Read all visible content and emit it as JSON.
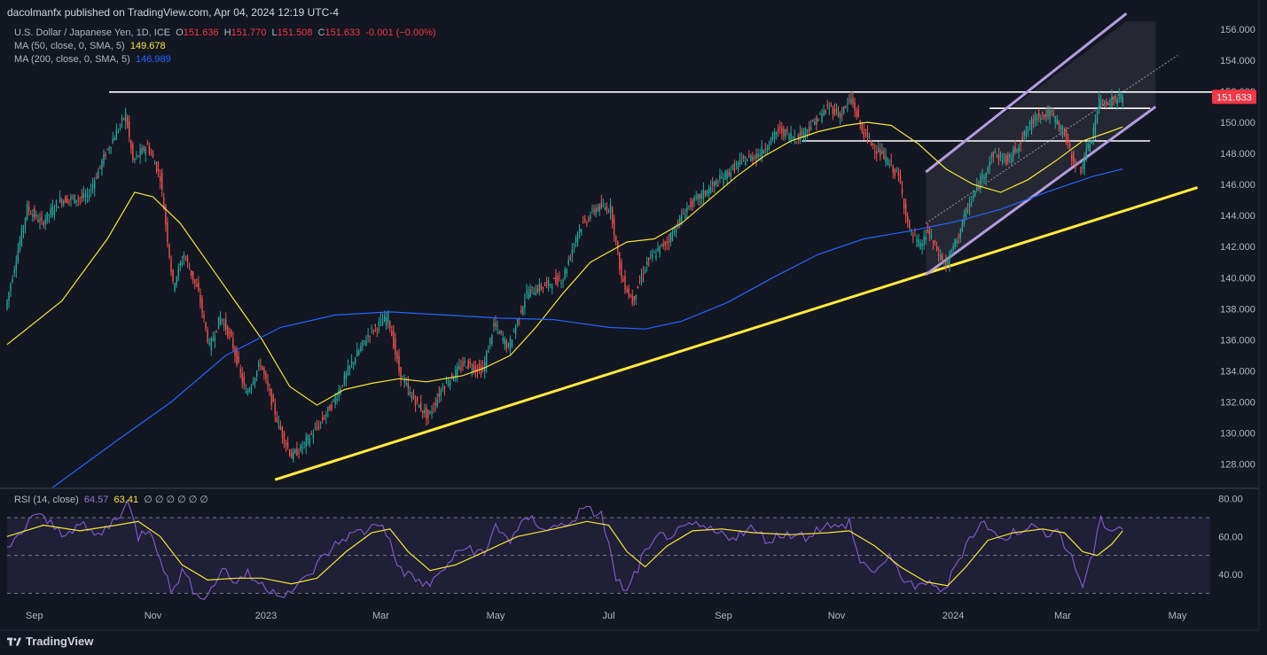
{
  "header": {
    "published": "dacolmanfx published on TradingView.com, Apr 04, 2024 12:19 UTC-4"
  },
  "legend": {
    "symbol": "U.S. Dollar / Japanese Yen, 1D, ICE",
    "o_label": "O",
    "o": "151.636",
    "h_label": "H",
    "h": "151.770",
    "l_label": "L",
    "l": "151.508",
    "c_label": "C",
    "c": "151.633",
    "change": "-0.001 (−0.00%)",
    "ma50_label": "MA (50, close, 0, SMA, 5)",
    "ma50": "149.678",
    "ma200_label": "MA (200, close, 0, SMA, 5)",
    "ma200": "146.989",
    "rsi_label": "RSI (14, close)",
    "rsi": "64.57",
    "rsi_ma": "63.41",
    "rsi_extra": "∅ ∅ ∅ ∅ ∅ ∅"
  },
  "price_badge": "151.633",
  "footer": {
    "brand": "TradingView"
  },
  "colors": {
    "up": "#26a69a",
    "down": "#ef5350",
    "ma50": "#f5e63c",
    "ma200": "#2962ff",
    "trend": "#ffeb3b",
    "channel": "#b39ddb",
    "rsi": "#7e57c2"
  },
  "chart_data": {
    "type": "candlestick",
    "title": "U.S. Dollar / Japanese Yen, 1D",
    "y_axis": {
      "min": 126.5,
      "max": 156.5,
      "ticks": [
        "156.000",
        "154.000",
        "152.000",
        "150.000",
        "148.000",
        "146.000",
        "144.000",
        "142.000",
        "140.000",
        "138.000",
        "136.000",
        "134.000",
        "132.000",
        "130.000",
        "128.000"
      ]
    },
    "x_axis": {
      "labels": [
        "Sep",
        "Nov",
        "2023",
        "Mar",
        "May",
        "Jul",
        "Sep",
        "Nov",
        "2024",
        "Mar",
        "May"
      ],
      "label_day_index": [
        15,
        80,
        142,
        205,
        268,
        330,
        393,
        455,
        519,
        579,
        642
      ]
    },
    "days_total": 660,
    "price_path": [
      {
        "d": 0,
        "p": 138.0
      },
      {
        "d": 12,
        "p": 144.5
      },
      {
        "d": 20,
        "p": 143.5
      },
      {
        "d": 30,
        "p": 145.0
      },
      {
        "d": 45,
        "p": 145.2
      },
      {
        "d": 55,
        "p": 148.0
      },
      {
        "d": 66,
        "p": 150.5
      },
      {
        "d": 70,
        "p": 147.5
      },
      {
        "d": 78,
        "p": 148.5
      },
      {
        "d": 85,
        "p": 146.5
      },
      {
        "d": 92,
        "p": 139.5
      },
      {
        "d": 98,
        "p": 141.5
      },
      {
        "d": 106,
        "p": 139.0
      },
      {
        "d": 112,
        "p": 135.5
      },
      {
        "d": 118,
        "p": 137.5
      },
      {
        "d": 124,
        "p": 136.0
      },
      {
        "d": 132,
        "p": 132.5
      },
      {
        "d": 140,
        "p": 134.5
      },
      {
        "d": 150,
        "p": 130.5
      },
      {
        "d": 157,
        "p": 128.5
      },
      {
        "d": 162,
        "p": 129.0
      },
      {
        "d": 172,
        "p": 130.5
      },
      {
        "d": 180,
        "p": 132.0
      },
      {
        "d": 190,
        "p": 134.5
      },
      {
        "d": 200,
        "p": 136.5
      },
      {
        "d": 210,
        "p": 137.5
      },
      {
        "d": 216,
        "p": 134.0
      },
      {
        "d": 222,
        "p": 132.5
      },
      {
        "d": 232,
        "p": 131.0
      },
      {
        "d": 240,
        "p": 133.0
      },
      {
        "d": 252,
        "p": 134.5
      },
      {
        "d": 262,
        "p": 134.0
      },
      {
        "d": 268,
        "p": 137.0
      },
      {
        "d": 276,
        "p": 135.5
      },
      {
        "d": 286,
        "p": 139.0
      },
      {
        "d": 296,
        "p": 139.5
      },
      {
        "d": 306,
        "p": 140.0
      },
      {
        "d": 314,
        "p": 143.0
      },
      {
        "d": 324,
        "p": 144.5
      },
      {
        "d": 332,
        "p": 144.5
      },
      {
        "d": 338,
        "p": 140.0
      },
      {
        "d": 344,
        "p": 138.5
      },
      {
        "d": 352,
        "p": 141.0
      },
      {
        "d": 364,
        "p": 142.5
      },
      {
        "d": 374,
        "p": 144.5
      },
      {
        "d": 384,
        "p": 145.5
      },
      {
        "d": 394,
        "p": 146.5
      },
      {
        "d": 404,
        "p": 147.5
      },
      {
        "d": 414,
        "p": 148.0
      },
      {
        "d": 424,
        "p": 149.5
      },
      {
        "d": 434,
        "p": 149.0
      },
      {
        "d": 444,
        "p": 150.0
      },
      {
        "d": 452,
        "p": 151.0
      },
      {
        "d": 458,
        "p": 150.5
      },
      {
        "d": 464,
        "p": 151.5
      },
      {
        "d": 470,
        "p": 149.5
      },
      {
        "d": 476,
        "p": 148.5
      },
      {
        "d": 484,
        "p": 147.5
      },
      {
        "d": 490,
        "p": 146.5
      },
      {
        "d": 496,
        "p": 143.0
      },
      {
        "d": 502,
        "p": 142.0
      },
      {
        "d": 506,
        "p": 143.0
      },
      {
        "d": 512,
        "p": 141.5
      },
      {
        "d": 516,
        "p": 140.8
      },
      {
        "d": 522,
        "p": 142.5
      },
      {
        "d": 528,
        "p": 144.5
      },
      {
        "d": 536,
        "p": 146.5
      },
      {
        "d": 542,
        "p": 148.0
      },
      {
        "d": 550,
        "p": 147.5
      },
      {
        "d": 558,
        "p": 149.0
      },
      {
        "d": 566,
        "p": 150.5
      },
      {
        "d": 574,
        "p": 150.5
      },
      {
        "d": 580,
        "p": 149.5
      },
      {
        "d": 586,
        "p": 147.5
      },
      {
        "d": 590,
        "p": 147.0
      },
      {
        "d": 596,
        "p": 149.0
      },
      {
        "d": 600,
        "p": 151.3
      },
      {
        "d": 606,
        "p": 151.4
      },
      {
        "d": 612,
        "p": 151.6
      }
    ],
    "ma50_path": [
      {
        "d": 0,
        "p": 135.7
      },
      {
        "d": 30,
        "p": 138.5
      },
      {
        "d": 55,
        "p": 142.5
      },
      {
        "d": 70,
        "p": 145.5
      },
      {
        "d": 80,
        "p": 145.2
      },
      {
        "d": 95,
        "p": 143.5
      },
      {
        "d": 110,
        "p": 141.0
      },
      {
        "d": 125,
        "p": 138.5
      },
      {
        "d": 140,
        "p": 136.0
      },
      {
        "d": 155,
        "p": 133.0
      },
      {
        "d": 170,
        "p": 131.8
      },
      {
        "d": 185,
        "p": 132.8
      },
      {
        "d": 200,
        "p": 133.2
      },
      {
        "d": 215,
        "p": 133.5
      },
      {
        "d": 230,
        "p": 133.3
      },
      {
        "d": 250,
        "p": 133.7
      },
      {
        "d": 262,
        "p": 134.2
      },
      {
        "d": 276,
        "p": 135.0
      },
      {
        "d": 290,
        "p": 136.8
      },
      {
        "d": 305,
        "p": 139.0
      },
      {
        "d": 320,
        "p": 141.0
      },
      {
        "d": 340,
        "p": 142.3
      },
      {
        "d": 355,
        "p": 142.5
      },
      {
        "d": 370,
        "p": 143.5
      },
      {
        "d": 385,
        "p": 145.0
      },
      {
        "d": 400,
        "p": 146.5
      },
      {
        "d": 415,
        "p": 147.8
      },
      {
        "d": 430,
        "p": 148.8
      },
      {
        "d": 445,
        "p": 149.4
      },
      {
        "d": 460,
        "p": 149.8
      },
      {
        "d": 472,
        "p": 150.0
      },
      {
        "d": 485,
        "p": 149.8
      },
      {
        "d": 500,
        "p": 148.6
      },
      {
        "d": 515,
        "p": 147.0
      },
      {
        "d": 530,
        "p": 146.0
      },
      {
        "d": 545,
        "p": 145.5
      },
      {
        "d": 560,
        "p": 146.3
      },
      {
        "d": 575,
        "p": 147.5
      },
      {
        "d": 590,
        "p": 148.8
      },
      {
        "d": 605,
        "p": 149.4
      },
      {
        "d": 612,
        "p": 149.7
      }
    ],
    "ma200_path": [
      {
        "d": 25,
        "p": 126.5
      },
      {
        "d": 60,
        "p": 129.5
      },
      {
        "d": 90,
        "p": 132.0
      },
      {
        "d": 120,
        "p": 135.0
      },
      {
        "d": 150,
        "p": 136.8
      },
      {
        "d": 180,
        "p": 137.6
      },
      {
        "d": 210,
        "p": 137.8
      },
      {
        "d": 240,
        "p": 137.6
      },
      {
        "d": 270,
        "p": 137.4
      },
      {
        "d": 300,
        "p": 137.3
      },
      {
        "d": 330,
        "p": 136.8
      },
      {
        "d": 350,
        "p": 136.7
      },
      {
        "d": 370,
        "p": 137.2
      },
      {
        "d": 395,
        "p": 138.4
      },
      {
        "d": 420,
        "p": 140.0
      },
      {
        "d": 445,
        "p": 141.5
      },
      {
        "d": 470,
        "p": 142.5
      },
      {
        "d": 495,
        "p": 143.0
      },
      {
        "d": 520,
        "p": 143.6
      },
      {
        "d": 545,
        "p": 144.4
      },
      {
        "d": 570,
        "p": 145.5
      },
      {
        "d": 595,
        "p": 146.5
      },
      {
        "d": 612,
        "p": 147.0
      }
    ],
    "levels": [
      {
        "price": 151.95,
        "from_day": 56,
        "to_day": 680
      },
      {
        "price": 150.9,
        "from_day": 539,
        "to_day": 627
      },
      {
        "price": 148.8,
        "from_day": 436,
        "to_day": 627
      }
    ],
    "trendline": {
      "from": {
        "d": 147,
        "p": 127.0
      },
      "to": {
        "d": 653,
        "p": 145.8
      }
    },
    "channel": {
      "lower": {
        "from": {
          "d": 504,
          "p": 140.2
        },
        "to": {
          "d": 630,
          "p": 151.0
        }
      },
      "upper": {
        "from": {
          "d": 504,
          "p": 146.8
        },
        "to": {
          "d": 614,
          "p": 157.0
        }
      },
      "mid": {
        "from": {
          "d": 504,
          "p": 143.5
        },
        "to": {
          "d": 642,
          "p": 154.3
        }
      },
      "shade_to_day": 630
    },
    "rsi": {
      "y_ticks": [
        "80.00",
        "60.00",
        "40.00"
      ],
      "min": 25,
      "max": 85,
      "band": [
        30,
        70
      ],
      "path": [
        {
          "d": 0,
          "p": 52
        },
        {
          "d": 8,
          "p": 62
        },
        {
          "d": 14,
          "p": 72
        },
        {
          "d": 22,
          "p": 68
        },
        {
          "d": 30,
          "p": 62
        },
        {
          "d": 40,
          "p": 66
        },
        {
          "d": 50,
          "p": 60
        },
        {
          "d": 60,
          "p": 70
        },
        {
          "d": 66,
          "p": 78
        },
        {
          "d": 72,
          "p": 60
        },
        {
          "d": 78,
          "p": 65
        },
        {
          "d": 84,
          "p": 50
        },
        {
          "d": 90,
          "p": 30
        },
        {
          "d": 96,
          "p": 42
        },
        {
          "d": 102,
          "p": 32
        },
        {
          "d": 110,
          "p": 28
        },
        {
          "d": 118,
          "p": 44
        },
        {
          "d": 124,
          "p": 36
        },
        {
          "d": 132,
          "p": 40
        },
        {
          "d": 140,
          "p": 34
        },
        {
          "d": 150,
          "p": 30
        },
        {
          "d": 158,
          "p": 32
        },
        {
          "d": 166,
          "p": 40
        },
        {
          "d": 176,
          "p": 52
        },
        {
          "d": 186,
          "p": 60
        },
        {
          "d": 196,
          "p": 63
        },
        {
          "d": 206,
          "p": 68
        },
        {
          "d": 214,
          "p": 45
        },
        {
          "d": 222,
          "p": 38
        },
        {
          "d": 232,
          "p": 34
        },
        {
          "d": 242,
          "p": 46
        },
        {
          "d": 252,
          "p": 55
        },
        {
          "d": 262,
          "p": 50
        },
        {
          "d": 268,
          "p": 66
        },
        {
          "d": 276,
          "p": 58
        },
        {
          "d": 286,
          "p": 70
        },
        {
          "d": 296,
          "p": 64
        },
        {
          "d": 306,
          "p": 66
        },
        {
          "d": 316,
          "p": 74
        },
        {
          "d": 326,
          "p": 72
        },
        {
          "d": 334,
          "p": 38
        },
        {
          "d": 340,
          "p": 30
        },
        {
          "d": 348,
          "p": 48
        },
        {
          "d": 358,
          "p": 60
        },
        {
          "d": 368,
          "p": 62
        },
        {
          "d": 378,
          "p": 66
        },
        {
          "d": 388,
          "p": 62
        },
        {
          "d": 398,
          "p": 60
        },
        {
          "d": 408,
          "p": 64
        },
        {
          "d": 418,
          "p": 58
        },
        {
          "d": 428,
          "p": 62
        },
        {
          "d": 438,
          "p": 60
        },
        {
          "d": 448,
          "p": 66
        },
        {
          "d": 456,
          "p": 64
        },
        {
          "d": 462,
          "p": 68
        },
        {
          "d": 468,
          "p": 46
        },
        {
          "d": 476,
          "p": 42
        },
        {
          "d": 484,
          "p": 48
        },
        {
          "d": 492,
          "p": 38
        },
        {
          "d": 500,
          "p": 32
        },
        {
          "d": 508,
          "p": 36
        },
        {
          "d": 514,
          "p": 30
        },
        {
          "d": 520,
          "p": 44
        },
        {
          "d": 528,
          "p": 60
        },
        {
          "d": 536,
          "p": 68
        },
        {
          "d": 544,
          "p": 58
        },
        {
          "d": 552,
          "p": 62
        },
        {
          "d": 560,
          "p": 66
        },
        {
          "d": 568,
          "p": 62
        },
        {
          "d": 576,
          "p": 64
        },
        {
          "d": 584,
          "p": 48
        },
        {
          "d": 590,
          "p": 34
        },
        {
          "d": 596,
          "p": 52
        },
        {
          "d": 600,
          "p": 68
        },
        {
          "d": 606,
          "p": 64
        },
        {
          "d": 612,
          "p": 65
        }
      ],
      "ma_path": [
        {
          "d": 0,
          "p": 60
        },
        {
          "d": 20,
          "p": 66
        },
        {
          "d": 40,
          "p": 63
        },
        {
          "d": 60,
          "p": 66
        },
        {
          "d": 72,
          "p": 68
        },
        {
          "d": 84,
          "p": 60
        },
        {
          "d": 96,
          "p": 45
        },
        {
          "d": 110,
          "p": 37
        },
        {
          "d": 126,
          "p": 38
        },
        {
          "d": 140,
          "p": 38
        },
        {
          "d": 156,
          "p": 35
        },
        {
          "d": 170,
          "p": 38
        },
        {
          "d": 186,
          "p": 52
        },
        {
          "d": 200,
          "p": 62
        },
        {
          "d": 210,
          "p": 64
        },
        {
          "d": 220,
          "p": 52
        },
        {
          "d": 232,
          "p": 42
        },
        {
          "d": 246,
          "p": 45
        },
        {
          "d": 262,
          "p": 52
        },
        {
          "d": 280,
          "p": 60
        },
        {
          "d": 300,
          "p": 64
        },
        {
          "d": 318,
          "p": 68
        },
        {
          "d": 330,
          "p": 66
        },
        {
          "d": 340,
          "p": 52
        },
        {
          "d": 350,
          "p": 44
        },
        {
          "d": 362,
          "p": 55
        },
        {
          "d": 376,
          "p": 63
        },
        {
          "d": 392,
          "p": 64
        },
        {
          "d": 410,
          "p": 62
        },
        {
          "d": 430,
          "p": 61
        },
        {
          "d": 450,
          "p": 62
        },
        {
          "d": 462,
          "p": 63
        },
        {
          "d": 476,
          "p": 55
        },
        {
          "d": 490,
          "p": 44
        },
        {
          "d": 504,
          "p": 36
        },
        {
          "d": 516,
          "p": 34
        },
        {
          "d": 526,
          "p": 44
        },
        {
          "d": 538,
          "p": 58
        },
        {
          "d": 552,
          "p": 62
        },
        {
          "d": 568,
          "p": 64
        },
        {
          "d": 580,
          "p": 62
        },
        {
          "d": 590,
          "p": 52
        },
        {
          "d": 598,
          "p": 50
        },
        {
          "d": 606,
          "p": 56
        },
        {
          "d": 612,
          "p": 63
        }
      ]
    }
  }
}
